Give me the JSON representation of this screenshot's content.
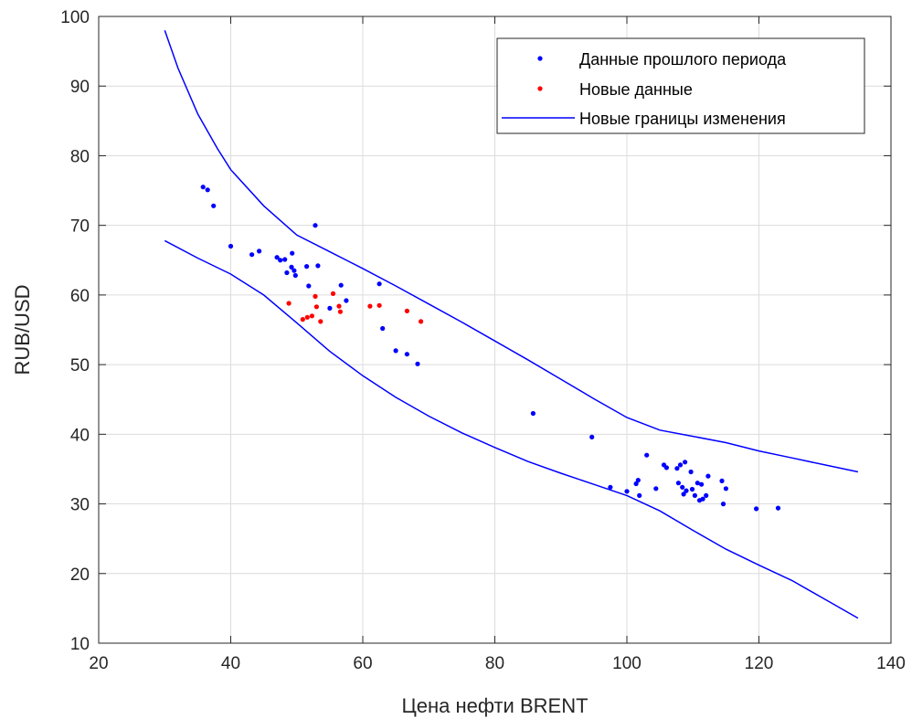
{
  "chart_data": {
    "type": "scatter",
    "title": "",
    "xlabel": "Цена нефти BRENT",
    "ylabel": "RUB/USD",
    "xlim": [
      20,
      140
    ],
    "ylim": [
      10,
      100
    ],
    "xticks": [
      "20",
      "40",
      "60",
      "80",
      "100",
      "120",
      "140"
    ],
    "yticks": [
      "10",
      "20",
      "30",
      "40",
      "50",
      "60",
      "70",
      "80",
      "90",
      "100"
    ],
    "grid": true,
    "legend_position": "top-right",
    "series": [
      {
        "name": "Данные прошлого периода",
        "kind": "scatter",
        "color": "#0000ff",
        "points": [
          [
            35.8,
            75.5
          ],
          [
            36.5,
            75.1
          ],
          [
            37.4,
            72.8
          ],
          [
            40.0,
            67.0
          ],
          [
            43.2,
            65.8
          ],
          [
            44.3,
            66.3
          ],
          [
            47.0,
            65.4
          ],
          [
            47.5,
            65.0
          ],
          [
            48.2,
            65.1
          ],
          [
            48.5,
            63.2
          ],
          [
            49.2,
            64.0
          ],
          [
            49.3,
            66.0
          ],
          [
            49.6,
            63.5
          ],
          [
            49.8,
            62.8
          ],
          [
            51.5,
            64.1
          ],
          [
            51.8,
            61.3
          ],
          [
            52.8,
            70.0
          ],
          [
            53.2,
            64.2
          ],
          [
            55.0,
            58.1
          ],
          [
            56.7,
            61.4
          ],
          [
            57.5,
            59.2
          ],
          [
            62.5,
            61.6
          ],
          [
            63.0,
            55.2
          ],
          [
            65.0,
            52.0
          ],
          [
            66.7,
            51.5
          ],
          [
            68.3,
            50.1
          ],
          [
            85.8,
            43.0
          ],
          [
            94.7,
            39.6
          ],
          [
            97.5,
            32.4
          ],
          [
            100.0,
            31.8
          ],
          [
            101.4,
            32.9
          ],
          [
            101.7,
            33.4
          ],
          [
            101.9,
            31.2
          ],
          [
            103.0,
            37.0
          ],
          [
            104.4,
            32.2
          ],
          [
            105.6,
            35.6
          ],
          [
            106.0,
            35.2
          ],
          [
            107.6,
            35.1
          ],
          [
            107.8,
            33.0
          ],
          [
            108.1,
            35.6
          ],
          [
            108.4,
            32.4
          ],
          [
            108.6,
            31.4
          ],
          [
            108.8,
            36.0
          ],
          [
            109.0,
            31.9
          ],
          [
            109.7,
            34.6
          ],
          [
            109.9,
            32.1
          ],
          [
            110.3,
            31.2
          ],
          [
            110.7,
            33.0
          ],
          [
            111.0,
            30.5
          ],
          [
            111.3,
            32.8
          ],
          [
            111.5,
            30.7
          ],
          [
            112.0,
            31.2
          ],
          [
            112.3,
            34.0
          ],
          [
            114.4,
            33.3
          ],
          [
            114.6,
            30.0
          ],
          [
            115.0,
            32.2
          ],
          [
            119.6,
            29.3
          ],
          [
            122.9,
            29.4
          ]
        ]
      },
      {
        "name": "Новые данные",
        "kind": "scatter",
        "color": "#ff0000",
        "points": [
          [
            48.8,
            58.8
          ],
          [
            50.9,
            56.5
          ],
          [
            51.6,
            56.8
          ],
          [
            52.3,
            57.0
          ],
          [
            52.8,
            59.8
          ],
          [
            53.0,
            58.3
          ],
          [
            53.6,
            56.2
          ],
          [
            55.5,
            60.2
          ],
          [
            56.4,
            58.4
          ],
          [
            56.6,
            57.6
          ],
          [
            61.1,
            58.4
          ],
          [
            62.5,
            58.5
          ],
          [
            66.7,
            57.7
          ],
          [
            68.8,
            56.2
          ]
        ]
      },
      {
        "name": "Новые границы изменения",
        "kind": "line",
        "color": "#0000ff",
        "lines": [
          [
            [
              30,
              98.0
            ],
            [
              32,
              92.6
            ],
            [
              35,
              86.0
            ],
            [
              38,
              81.0
            ],
            [
              40,
              78.0
            ],
            [
              45,
              72.8
            ],
            [
              50,
              68.6
            ],
            [
              55,
              66.2
            ],
            [
              60,
              63.8
            ],
            [
              65,
              61.3
            ],
            [
              70,
              58.7
            ],
            [
              75,
              56.1
            ],
            [
              80,
              53.4
            ],
            [
              85,
              50.7
            ],
            [
              90,
              47.9
            ],
            [
              95,
              45.1
            ],
            [
              100,
              42.4
            ],
            [
              105,
              40.6
            ],
            [
              110,
              39.7
            ],
            [
              115,
              38.8
            ],
            [
              120,
              37.6
            ],
            [
              125,
              36.6
            ],
            [
              130,
              35.6
            ],
            [
              135,
              34.6
            ]
          ],
          [
            [
              30,
              67.8
            ],
            [
              35,
              65.3
            ],
            [
              40,
              63.0
            ],
            [
              45,
              60.0
            ],
            [
              50,
              56.0
            ],
            [
              55,
              51.9
            ],
            [
              60,
              48.4
            ],
            [
              65,
              45.3
            ],
            [
              70,
              42.6
            ],
            [
              75,
              40.2
            ],
            [
              80,
              38.1
            ],
            [
              85,
              36.1
            ],
            [
              90,
              34.4
            ],
            [
              95,
              32.8
            ],
            [
              100,
              31.2
            ],
            [
              105,
              29.0
            ],
            [
              110,
              26.2
            ],
            [
              115,
              23.5
            ],
            [
              120,
              21.2
            ],
            [
              125,
              19.0
            ],
            [
              130,
              16.3
            ],
            [
              135,
              13.6
            ]
          ]
        ]
      }
    ]
  }
}
